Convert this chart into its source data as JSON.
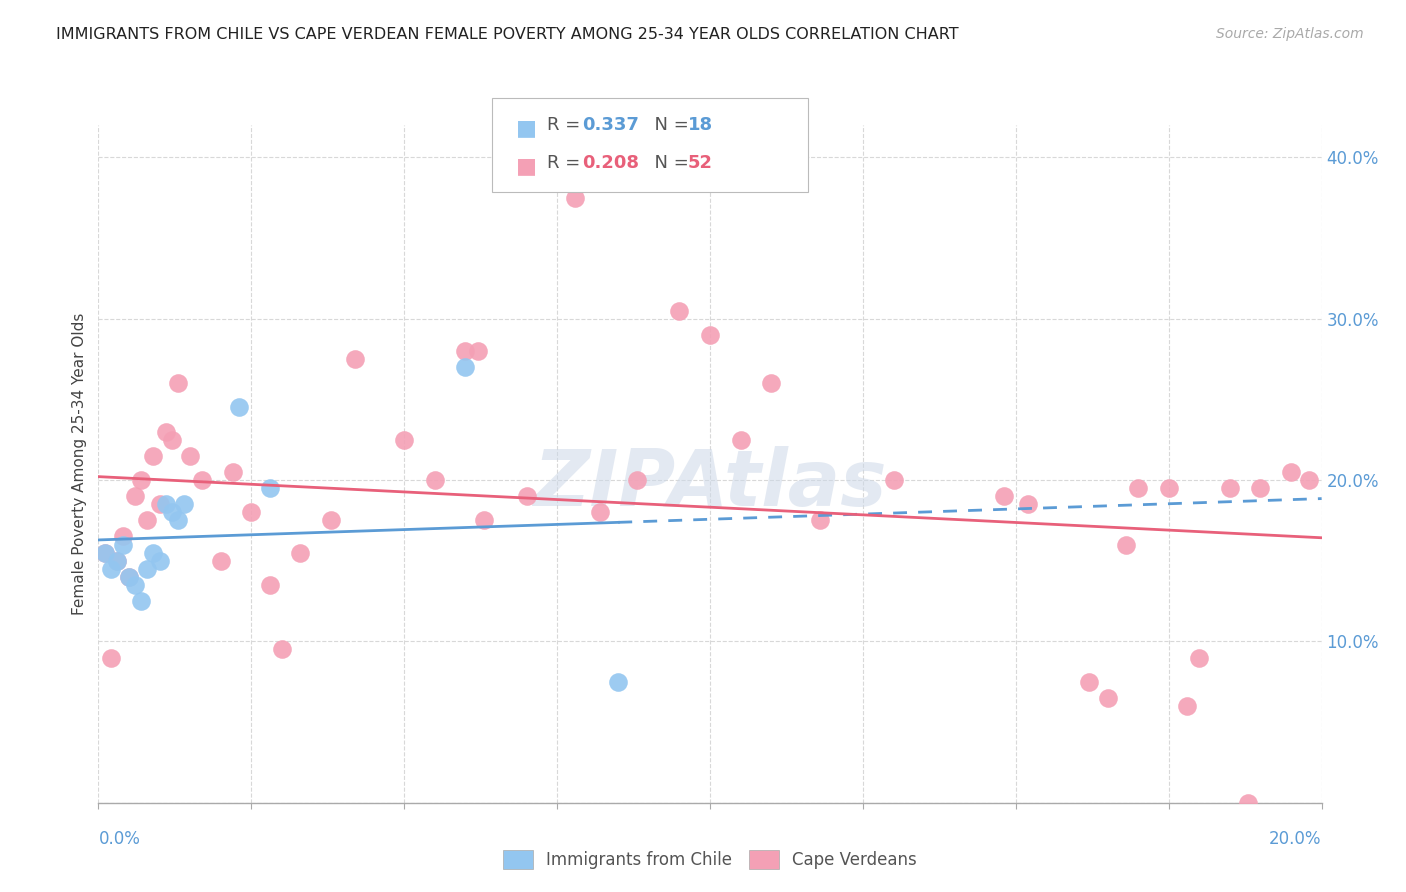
{
  "title": "IMMIGRANTS FROM CHILE VS CAPE VERDEAN FEMALE POVERTY AMONG 25-34 YEAR OLDS CORRELATION CHART",
  "source": "Source: ZipAtlas.com",
  "ylabel": "Female Poverty Among 25-34 Year Olds",
  "xlim": [
    0,
    0.2
  ],
  "ylim": [
    0.0,
    0.42
  ],
  "yticks": [
    0.0,
    0.1,
    0.2,
    0.3,
    0.4
  ],
  "ytick_labels": [
    "",
    "10.0%",
    "20.0%",
    "30.0%",
    "40.0%"
  ],
  "xticks": [
    0.0,
    0.025,
    0.05,
    0.075,
    0.1,
    0.125,
    0.15,
    0.175,
    0.2
  ],
  "chile_color": "#93c6f0",
  "cv_color": "#f4a0b5",
  "chile_line_color": "#5b9bd5",
  "cv_line_color": "#e8607a",
  "watermark": "ZIPAtlas",
  "chile_x": [
    0.001,
    0.002,
    0.003,
    0.004,
    0.005,
    0.006,
    0.007,
    0.008,
    0.009,
    0.01,
    0.011,
    0.012,
    0.013,
    0.014,
    0.023,
    0.028,
    0.06,
    0.085
  ],
  "chile_y": [
    0.155,
    0.145,
    0.15,
    0.16,
    0.14,
    0.135,
    0.125,
    0.145,
    0.155,
    0.15,
    0.185,
    0.18,
    0.175,
    0.185,
    0.245,
    0.195,
    0.27,
    0.075
  ],
  "cv_x": [
    0.001,
    0.002,
    0.003,
    0.004,
    0.005,
    0.006,
    0.007,
    0.008,
    0.009,
    0.01,
    0.011,
    0.012,
    0.013,
    0.015,
    0.017,
    0.02,
    0.022,
    0.025,
    0.028,
    0.03,
    0.033,
    0.038,
    0.042,
    0.05,
    0.055,
    0.06,
    0.062,
    0.063,
    0.07,
    0.078,
    0.082,
    0.088,
    0.095,
    0.1,
    0.105,
    0.11,
    0.118,
    0.13,
    0.148,
    0.152,
    0.162,
    0.165,
    0.168,
    0.17,
    0.175,
    0.178,
    0.18,
    0.185,
    0.188,
    0.19,
    0.195,
    0.198
  ],
  "cv_y": [
    0.155,
    0.09,
    0.15,
    0.165,
    0.14,
    0.19,
    0.2,
    0.175,
    0.215,
    0.185,
    0.23,
    0.225,
    0.26,
    0.215,
    0.2,
    0.15,
    0.205,
    0.18,
    0.135,
    0.095,
    0.155,
    0.175,
    0.275,
    0.225,
    0.2,
    0.28,
    0.28,
    0.175,
    0.19,
    0.375,
    0.18,
    0.2,
    0.305,
    0.29,
    0.225,
    0.26,
    0.175,
    0.2,
    0.19,
    0.185,
    0.075,
    0.065,
    0.16,
    0.195,
    0.195,
    0.06,
    0.09,
    0.195,
    0.0,
    0.195,
    0.205,
    0.2
  ]
}
